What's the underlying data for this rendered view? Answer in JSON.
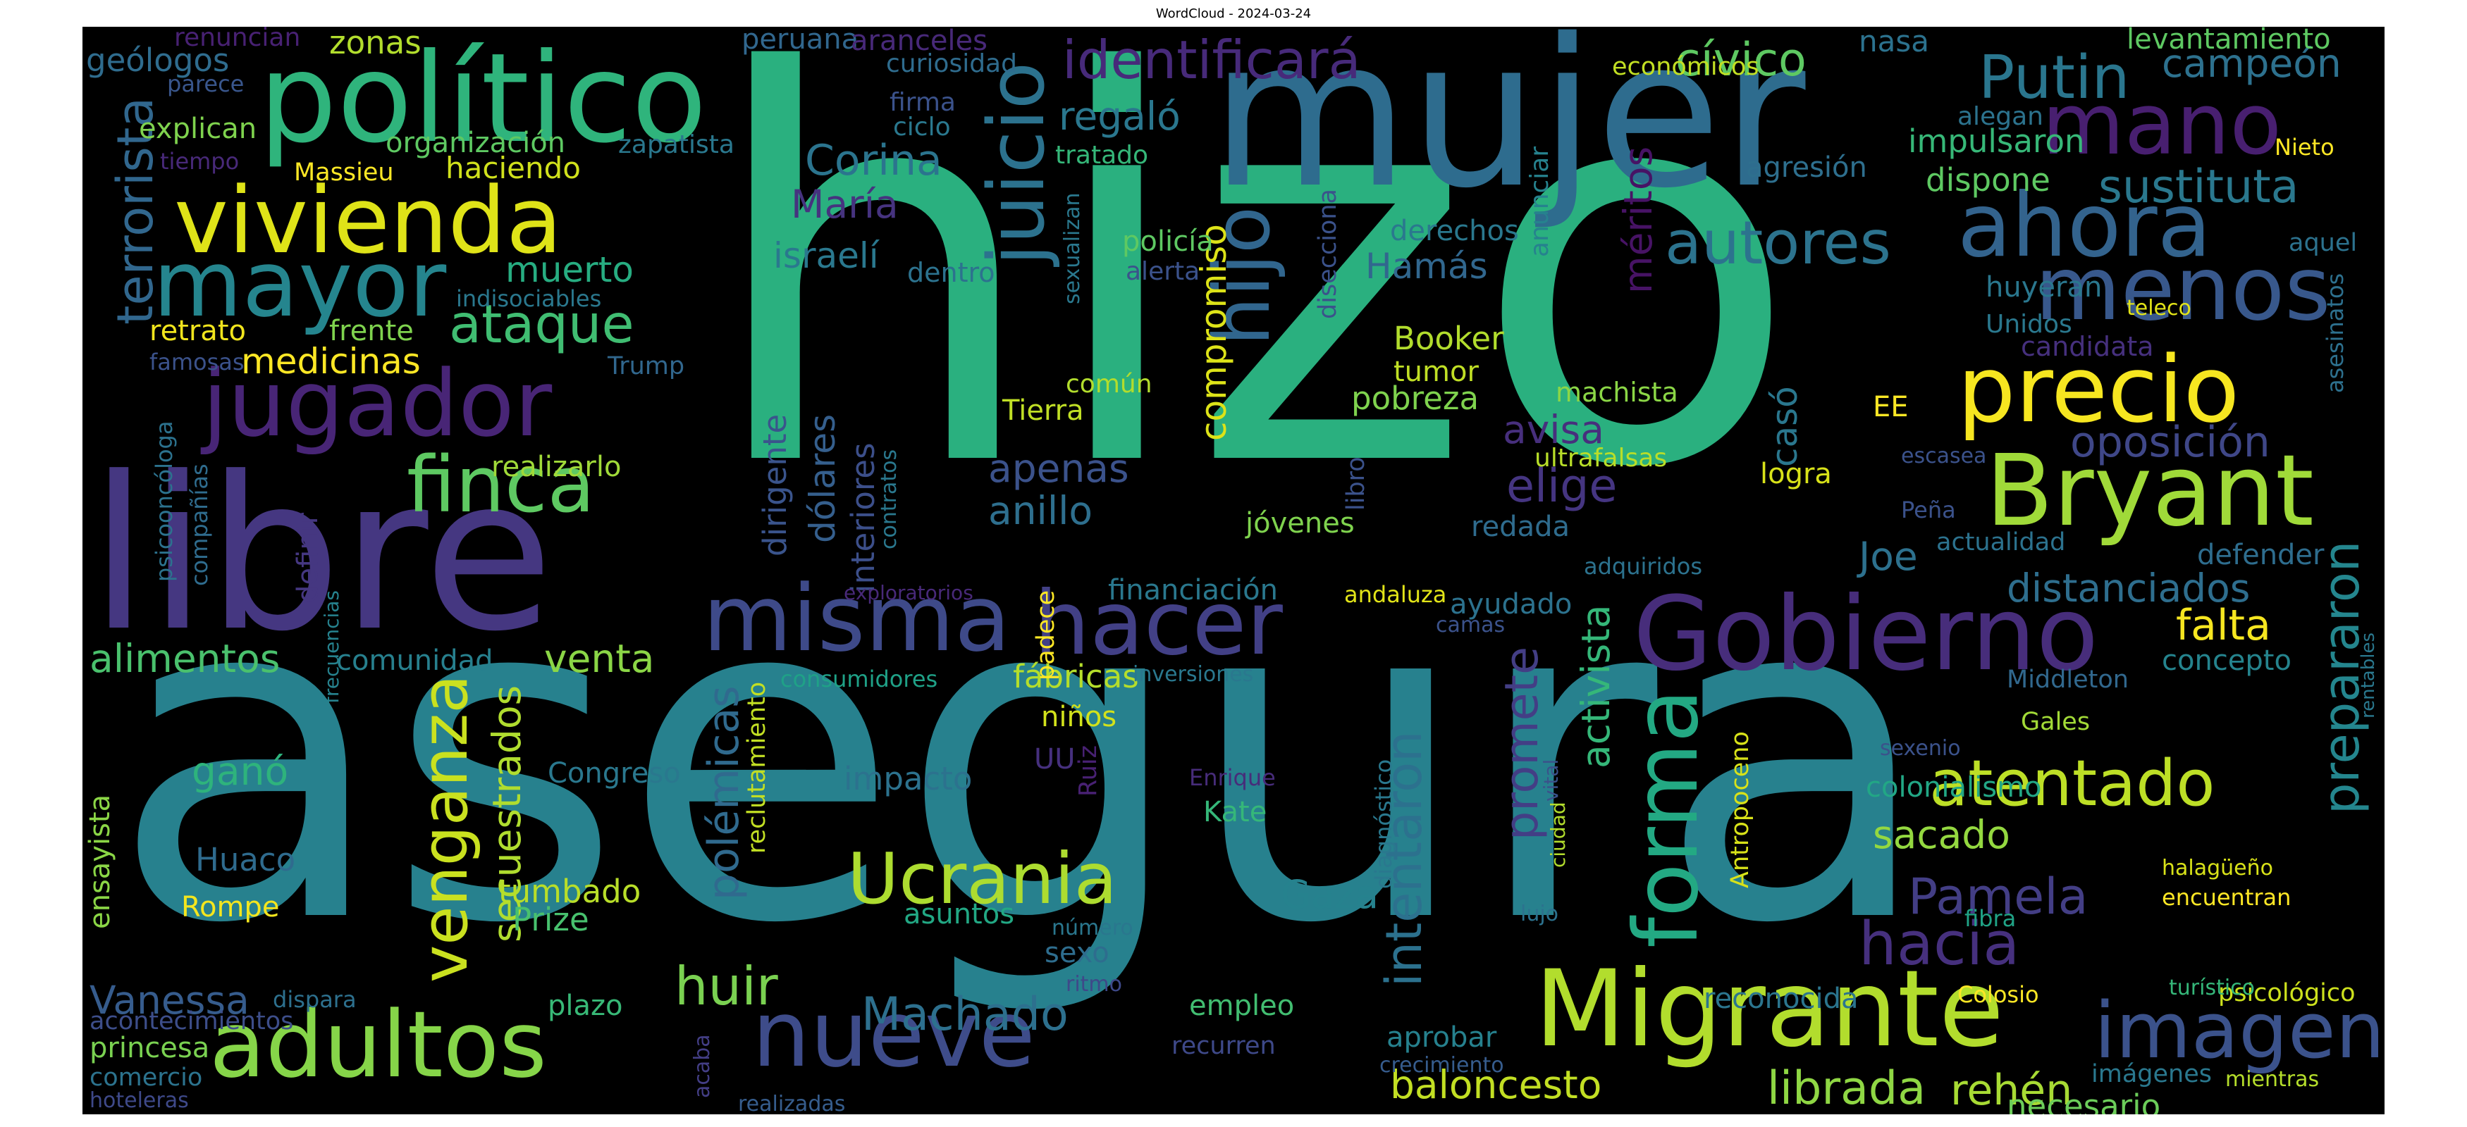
{
  "title": "WordCloud - 2024-03-24",
  "words": [
    {
      "text": "hizo",
      "color": "#2ab07f"
    },
    {
      "text": "asegura",
      "color": "#27818e"
    },
    {
      "text": "mujer",
      "color": "#2e6c8e"
    },
    {
      "text": "libre",
      "color": "#453781"
    },
    {
      "text": "político",
      "color": "#2fb47c"
    },
    {
      "text": "Migrante",
      "color": "#b2dd2d"
    },
    {
      "text": "Bryant",
      "color": "#a0da39"
    },
    {
      "text": "precio",
      "color": "#f6e620"
    },
    {
      "text": "Gobierno",
      "color": "#472d7b"
    },
    {
      "text": "vivienda",
      "color": "#dfe318"
    },
    {
      "text": "jugador",
      "color": "#482576"
    },
    {
      "text": "misma",
      "color": "#3e4a89"
    },
    {
      "text": "hacer",
      "color": "#424086"
    },
    {
      "text": "mayor",
      "color": "#25858e"
    },
    {
      "text": "adultos",
      "color": "#86d549"
    },
    {
      "text": "nueve",
      "color": "#3e4c8a"
    },
    {
      "text": "forma",
      "color": "#23a983"
    },
    {
      "text": "ahora",
      "color": "#33638d"
    },
    {
      "text": "mano",
      "color": "#481f70"
    },
    {
      "text": "menos",
      "color": "#38588c"
    },
    {
      "text": "imagen",
      "color": "#3b528b"
    },
    {
      "text": "Ucrania",
      "color": "#addc30"
    },
    {
      "text": "juicio",
      "color": "#2c728e"
    },
    {
      "text": "hijo",
      "color": "#31668e"
    },
    {
      "text": "finca",
      "color": "#5ec962"
    },
    {
      "text": "venganza",
      "color": "#cae11f"
    },
    {
      "text": "atentado",
      "color": "#bddf26"
    },
    {
      "text": "hacia",
      "color": "#46307e"
    },
    {
      "text": "Putin",
      "color": "#2a768e"
    },
    {
      "text": "identificará",
      "color": "#472a7a"
    },
    {
      "text": "autores",
      "color": "#2c738e"
    },
    {
      "text": "terrorista",
      "color": "#31678e"
    },
    {
      "text": "prepararon",
      "color": "#24868e"
    },
    {
      "text": "intentaron",
      "color": "#2c718e"
    },
    {
      "text": "promete",
      "color": "#433e85"
    },
    {
      "text": "compromiso",
      "color": "#dde318"
    },
    {
      "text": "polémicas",
      "color": "#306a8e"
    },
    {
      "text": "secuestrados",
      "color": "#b0dd2f"
    },
    {
      "text": "méritos",
      "color": "#471365"
    },
    {
      "text": "activista",
      "color": "#35b779"
    },
    {
      "text": "oposición",
      "color": "#3f4788"
    },
    {
      "text": "sustituta",
      "color": "#2a788e"
    },
    {
      "text": "ataque",
      "color": "#40bd72"
    },
    {
      "text": "huir",
      "color": "#7ad151"
    },
    {
      "text": "Machado",
      "color": "#2d708e"
    },
    {
      "text": "Pamela",
      "color": "#433e85"
    },
    {
      "text": "librada",
      "color": "#8fd744"
    },
    {
      "text": "rehén",
      "color": "#a8db34"
    },
    {
      "text": "baloncesto",
      "color": "#c2df23"
    },
    {
      "text": "distanciados",
      "color": "#2e6e8e"
    },
    {
      "text": "Vanessa",
      "color": "#365c8d"
    },
    {
      "text": "cívico",
      "color": "#5ec962"
    },
    {
      "text": "campeón",
      "color": "#2d718e"
    },
    {
      "text": "Corina",
      "color": "#2b748e"
    },
    {
      "text": "regaló",
      "color": "#2a778e"
    },
    {
      "text": "María",
      "color": "#46337f"
    },
    {
      "text": "israelí",
      "color": "#2a788e"
    },
    {
      "text": "muerto",
      "color": "#27ad81"
    },
    {
      "text": "medicinas",
      "color": "#fde725"
    },
    {
      "text": "alimentos",
      "color": "#4ac16d"
    },
    {
      "text": "venta",
      "color": "#8bd646"
    },
    {
      "text": "apenas",
      "color": "#3b528b"
    },
    {
      "text": "anillo",
      "color": "#2e6f8e"
    },
    {
      "text": "dólares",
      "color": "#355f8d"
    },
    {
      "text": "interiores",
      "color": "#3c4f8a"
    },
    {
      "text": "dirigente",
      "color": "#3a548c"
    },
    {
      "text": "Tierra",
      "color": "#c0df25"
    },
    {
      "text": "avisa",
      "color": "#472f7d"
    },
    {
      "text": "elige",
      "color": "#453581"
    },
    {
      "text": "Joe",
      "color": "#2d718e"
    },
    {
      "text": "falta",
      "color": "#f6e620"
    },
    {
      "text": "sacado",
      "color": "#94d840"
    },
    {
      "text": "colonialismo",
      "color": "#22a785"
    },
    {
      "text": "Gaza",
      "color": "#26828e"
    },
    {
      "text": "ganó",
      "color": "#2eb37c"
    },
    {
      "text": "Congreso",
      "color": "#2a788e"
    },
    {
      "text": "tumbado",
      "color": "#b8de29"
    },
    {
      "text": "Prize",
      "color": "#48c16e"
    },
    {
      "text": "Huaco",
      "color": "#2f6b8e"
    },
    {
      "text": "Rompe",
      "color": "#f4e61e"
    },
    {
      "text": "impacto",
      "color": "#2c728e"
    },
    {
      "text": "asuntos",
      "color": "#22a884"
    },
    {
      "text": "fábricas",
      "color": "#b5de2b"
    },
    {
      "text": "niños",
      "color": "#d2e21b"
    },
    {
      "text": "consumidores",
      "color": "#1fa187"
    },
    {
      "text": "empleo",
      "color": "#42be71"
    },
    {
      "text": "recurren",
      "color": "#3e4989"
    },
    {
      "text": "aprobar",
      "color": "#26818e"
    },
    {
      "text": "reconocida",
      "color": "#2b758e"
    },
    {
      "text": "Colosio",
      "color": "#fde725"
    },
    {
      "text": "necesario",
      "color": "#6ccd5a"
    },
    {
      "text": "psicológico",
      "color": "#cde11d"
    },
    {
      "text": "imágenes",
      "color": "#2a788e"
    },
    {
      "text": "mientras",
      "color": "#b5de2b"
    },
    {
      "text": "turístico",
      "color": "#35b779"
    },
    {
      "text": "halagüeño",
      "color": "#d8e219"
    },
    {
      "text": "encuentran",
      "color": "#fde725"
    },
    {
      "text": "fibra",
      "color": "#20a386"
    },
    {
      "text": "sexenio",
      "color": "#3b528b"
    },
    {
      "text": "Gales",
      "color": "#a2da37"
    },
    {
      "text": "Middleton",
      "color": "#31688e"
    },
    {
      "text": "concepto",
      "color": "#25848e"
    },
    {
      "text": "defender",
      "color": "#2e6d8e"
    },
    {
      "text": "actualidad",
      "color": "#2c728e"
    },
    {
      "text": "Antropoceno",
      "color": "#d8e219"
    },
    {
      "text": "Kate",
      "color": "#35b779"
    },
    {
      "text": "Enrique",
      "color": "#472c7a"
    },
    {
      "text": "Ruiz",
      "color": "#482173"
    },
    {
      "text": "UU",
      "color": "#46307e"
    },
    {
      "text": "sexo",
      "color": "#2e6d8e"
    },
    {
      "text": "número",
      "color": "#2a778e"
    },
    {
      "text": "ritmo",
      "color": "#3e4989"
    },
    {
      "text": "plazo",
      "color": "#38b977"
    },
    {
      "text": "dispara",
      "color": "#2d708e"
    },
    {
      "text": "princesa",
      "color": "#7ad151"
    },
    {
      "text": "acontecimientos",
      "color": "#3d4e8a"
    },
    {
      "text": "comercio",
      "color": "#2c738e"
    },
    {
      "text": "hoteleras",
      "color": "#3e4989"
    },
    {
      "text": "realizadas",
      "color": "#365d8d"
    },
    {
      "text": "acaba",
      "color": "#433e85"
    },
    {
      "text": "crecimiento",
      "color": "#365c8d"
    },
    {
      "text": "ensayista",
      "color": "#8bd646"
    },
    {
      "text": "comunidad",
      "color": "#27808e"
    },
    {
      "text": "retrato",
      "color": "#f1e51d"
    },
    {
      "text": "frente",
      "color": "#7fd34e"
    },
    {
      "text": "famosas",
      "color": "#3b528b"
    },
    {
      "text": "Trump",
      "color": "#31678e"
    },
    {
      "text": "indisociables",
      "color": "#2a788e"
    },
    {
      "text": "realizarlo",
      "color": "#a0da39"
    },
    {
      "text": "psicooncóloga",
      "color": "#2c728e"
    },
    {
      "text": "compañías",
      "color": "#2f6c8e"
    },
    {
      "text": "frecuencias",
      "color": "#26828e"
    },
    {
      "text": "definir",
      "color": "#453781"
    },
    {
      "text": "organización",
      "color": "#5ec962"
    },
    {
      "text": "zapatista",
      "color": "#2a788e"
    },
    {
      "text": "haciendo",
      "color": "#d0e11c"
    },
    {
      "text": "explican",
      "color": "#7fd34e"
    },
    {
      "text": "Massieu",
      "color": "#fde725"
    },
    {
      "text": "tiempo",
      "color": "#482979"
    },
    {
      "text": "geólogos",
      "color": "#2f6c8e"
    },
    {
      "text": "parece",
      "color": "#39568c"
    },
    {
      "text": "zonas",
      "color": "#b2dd2d"
    },
    {
      "text": "renuncian",
      "color": "#482173"
    },
    {
      "text": "peruana",
      "color": "#31678e"
    },
    {
      "text": "aranceles",
      "color": "#482979"
    },
    {
      "text": "curiosidad",
      "color": "#2f6c8e"
    },
    {
      "text": "firma",
      "color": "#3b528b"
    },
    {
      "text": "ciclo",
      "color": "#2a788e"
    },
    {
      "text": "tratado",
      "color": "#35b779"
    },
    {
      "text": "económicos",
      "color": "#c2df23"
    },
    {
      "text": "nasa",
      "color": "#2c728e"
    },
    {
      "text": "levantamiento",
      "color": "#5ec962"
    },
    {
      "text": "teleco",
      "color": "#e2e418"
    },
    {
      "text": "alegan",
      "color": "#2c738e"
    },
    {
      "text": "impulsaron",
      "color": "#37b878"
    },
    {
      "text": "Nieto",
      "color": "#fde725"
    },
    {
      "text": "agresión",
      "color": "#2e6f8e"
    },
    {
      "text": "dispone",
      "color": "#5ec962"
    },
    {
      "text": "aquel",
      "color": "#2c728e"
    },
    {
      "text": "anunciar",
      "color": "#26828e"
    },
    {
      "text": "huyeran",
      "color": "#2a778e"
    },
    {
      "text": "Unidos",
      "color": "#2a788e"
    },
    {
      "text": "candidata",
      "color": "#46307e"
    },
    {
      "text": "asesinatos",
      "color": "#2d708e"
    },
    {
      "text": "EE",
      "color": "#fde725"
    },
    {
      "text": "casó",
      "color": "#2a778e"
    },
    {
      "text": "escasea",
      "color": "#3b528b"
    },
    {
      "text": "logra",
      "color": "#d8e219"
    },
    {
      "text": "Peña",
      "color": "#3b528b"
    },
    {
      "text": "adquiridos",
      "color": "#2c728e"
    },
    {
      "text": "machista",
      "color": "#8bd646"
    },
    {
      "text": "ultrafalsas",
      "color": "#b8de29"
    },
    {
      "text": "redada",
      "color": "#2f6c8e"
    },
    {
      "text": "Booker",
      "color": "#b2dd2d"
    },
    {
      "text": "tumor",
      "color": "#c0df25"
    },
    {
      "text": "pobreza",
      "color": "#7fd34e"
    },
    {
      "text": "Hamás",
      "color": "#31678e"
    },
    {
      "text": "derechos",
      "color": "#2a788e"
    },
    {
      "text": "disecciona",
      "color": "#3b528b"
    },
    {
      "text": "libro",
      "color": "#3b528b"
    },
    {
      "text": "jóvenes",
      "color": "#7fd34e"
    },
    {
      "text": "ayudado",
      "color": "#2c728e"
    },
    {
      "text": "camas",
      "color": "#3b528b"
    },
    {
      "text": "andaluza",
      "color": "#e2e418"
    },
    {
      "text": "financiación",
      "color": "#2a788e"
    },
    {
      "text": "exploratorios",
      "color": "#482979"
    },
    {
      "text": "padece",
      "color": "#fde725"
    },
    {
      "text": "inversiones",
      "color": "#2a788e"
    },
    {
      "text": "reclutamiento",
      "color": "#c2df23"
    },
    {
      "text": "contratos",
      "color": "#2a788e"
    },
    {
      "text": "común",
      "color": "#b2dd2d"
    },
    {
      "text": "dentro",
      "color": "#2c728e"
    },
    {
      "text": "sexualizan",
      "color": "#2a788e"
    },
    {
      "text": "alerta",
      "color": "#3b528b"
    },
    {
      "text": "policía",
      "color": "#5ec962"
    },
    {
      "text": "diagnóstico",
      "color": "#2a788e"
    },
    {
      "text": "ciudad",
      "color": "#b2dd2d"
    },
    {
      "text": "lujo",
      "color": "#2c728e"
    },
    {
      "text": "vital",
      "color": "#3b528b"
    },
    {
      "text": "rentables",
      "color": "#2a788e"
    }
  ]
}
